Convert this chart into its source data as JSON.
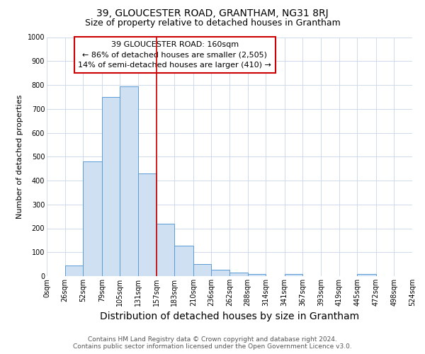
{
  "title": "39, GLOUCESTER ROAD, GRANTHAM, NG31 8RJ",
  "subtitle": "Size of property relative to detached houses in Grantham",
  "xlabel": "Distribution of detached houses by size in Grantham",
  "ylabel": "Number of detached properties",
  "footer_line1": "Contains HM Land Registry data © Crown copyright and database right 2024.",
  "footer_line2": "Contains public sector information licensed under the Open Government Licence v3.0.",
  "bin_edges": [
    0,
    26,
    52,
    79,
    105,
    131,
    157,
    183,
    210,
    236,
    262,
    288,
    314,
    341,
    367,
    393,
    419,
    445,
    472,
    498,
    524
  ],
  "bin_labels": [
    "0sqm",
    "26sqm",
    "52sqm",
    "79sqm",
    "105sqm",
    "131sqm",
    "157sqm",
    "183sqm",
    "210sqm",
    "236sqm",
    "262sqm",
    "288sqm",
    "314sqm",
    "341sqm",
    "367sqm",
    "393sqm",
    "419sqm",
    "445sqm",
    "472sqm",
    "498sqm",
    "524sqm"
  ],
  "counts": [
    0,
    45,
    480,
    750,
    795,
    430,
    218,
    128,
    50,
    28,
    15,
    10,
    0,
    8,
    0,
    0,
    0,
    8,
    0,
    0
  ],
  "bar_color": "#cfe0f2",
  "bar_edge_color": "#5b9bd5",
  "property_line_x": 157,
  "red_line_color": "#cc0000",
  "annotation_box_text": "39 GLOUCESTER ROAD: 160sqm\n← 86% of detached houses are smaller (2,505)\n14% of semi-detached houses are larger (410) →",
  "ylim": [
    0,
    1000
  ],
  "yticks": [
    0,
    100,
    200,
    300,
    400,
    500,
    600,
    700,
    800,
    900,
    1000
  ],
  "background_color": "#ffffff",
  "grid_color": "#c8d4e8",
  "title_fontsize": 10,
  "subtitle_fontsize": 9,
  "xlabel_fontsize": 10,
  "ylabel_fontsize": 8,
  "tick_fontsize": 7,
  "annotation_fontsize": 8,
  "footer_fontsize": 6.5
}
